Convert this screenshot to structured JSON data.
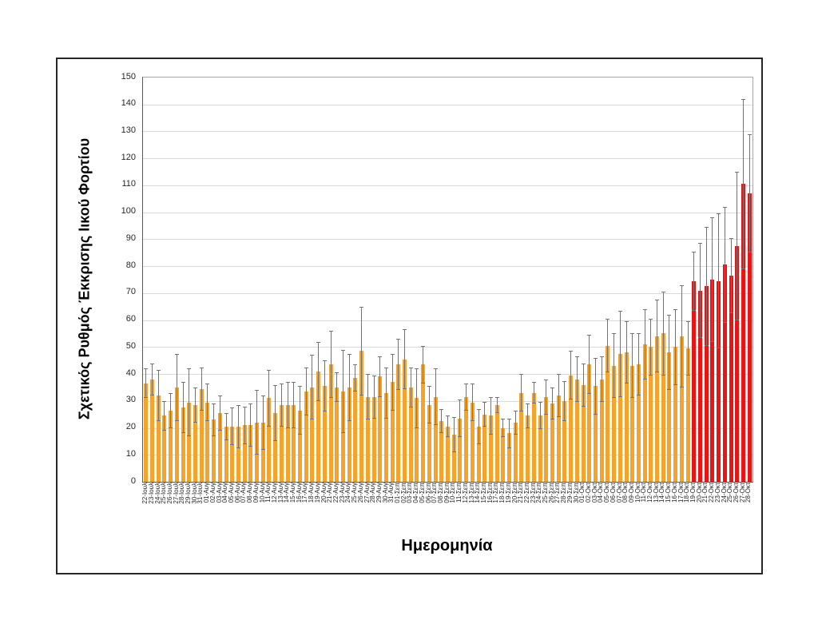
{
  "chart_data": {
    "type": "bar",
    "title": "",
    "ylabel": "Σχετικός Ρυθμός Έκκρισης Ιικού Φορτίου",
    "xlabel": "Ημερομηνία",
    "ylim": [
      0,
      150
    ],
    "y_ticks": [
      0,
      10,
      20,
      30,
      40,
      50,
      60,
      70,
      80,
      90,
      100,
      110,
      120,
      130,
      140,
      150
    ],
    "grid": true,
    "legend_position": "none",
    "error_bar_style": "symmetric-with-caps",
    "highlight_start_category": "19-Οκτ",
    "colors": {
      "bar_default": "#F5A32B",
      "bar_highlight": "#E91414",
      "error_bar": "#737373",
      "gridline": "#D9D9D9",
      "axis": "#595959"
    },
    "categories": [
      "22-Ιουλ",
      "23-Ιουλ",
      "24-Ιουλ",
      "25-Ιουλ",
      "26-Ιουλ",
      "27-Ιουλ",
      "28-Ιουλ",
      "29-Ιουλ",
      "30-Ιουλ",
      "31-Ιουλ",
      "01-Αυγ",
      "02-Αυγ",
      "03-Αυγ",
      "04-Αυγ",
      "05-Αυγ",
      "06-Αυγ",
      "07-Αυγ",
      "08-Αυγ",
      "09-Αυγ",
      "10-Αυγ",
      "11-Αυγ",
      "12-Αυγ",
      "13-Αυγ",
      "14-Αυγ",
      "15-Αυγ",
      "16-Αυγ",
      "17-Αυγ",
      "18-Αυγ",
      "19-Αυγ",
      "20-Αυγ",
      "21-Αυγ",
      "22-Αυγ",
      "23-Αυγ",
      "24-Αυγ",
      "25-Αυγ",
      "26-Αυγ",
      "27-Αυγ",
      "28-Αυγ",
      "29-Αυγ",
      "30-Αυγ",
      "31-Αυγ",
      "01-Σεπ",
      "02-Σεπ",
      "03-Σεπ",
      "04-Σεπ",
      "05-Σεπ",
      "06-Σεπ",
      "07-Σεπ",
      "08-Σεπ",
      "09-Σεπ",
      "10-Σεπ",
      "11-Σεπ",
      "12-Σεπ",
      "13-Σεπ",
      "14-Σεπ",
      "15-Σεπ",
      "16-Σεπ",
      "17-Σεπ",
      "18-Σεπ",
      "19-Σεπ",
      "20-Σεπ",
      "21-Σεπ",
      "22-Σεπ",
      "23-Σεπ",
      "24-Σεπ",
      "25-Σεπ",
      "26-Σεπ",
      "27-Σεπ",
      "28-Σεπ",
      "29-Σεπ",
      "30-Σεπ",
      "01-Οκτ",
      "02-Οκτ",
      "03-Οκτ",
      "04-Οκτ",
      "05-Οκτ",
      "06-Οκτ",
      "07-Οκτ",
      "08-Οκτ",
      "09-Οκτ",
      "10-Οκτ",
      "11-Οκτ",
      "12-Οκτ",
      "13-Οκτ",
      "14-Οκτ",
      "15-Οκτ",
      "16-Οκτ",
      "17-Οκτ",
      "18-Οκτ",
      "19-Οκτ",
      "20-Οκτ",
      "21-Οκτ",
      "22-Οκτ",
      "23-Οκτ",
      "24-Οκτ",
      "25-Οκτ",
      "26-Οκτ",
      "27-Οκτ",
      "28-Οκτ"
    ],
    "values": [
      36.5,
      38,
      32,
      24.5,
      26.5,
      35,
      27.5,
      29.5,
      28.5,
      34.5,
      29.5,
      23,
      25.5,
      20.5,
      20.5,
      20.5,
      21,
      21,
      22,
      22,
      31,
      25.5,
      28.5,
      28.5,
      28.5,
      26.5,
      33.5,
      35,
      41,
      35.5,
      43.5,
      35,
      33.5,
      35,
      38.5,
      48.5,
      31.5,
      31.5,
      39,
      33,
      37,
      43.5,
      45.5,
      35,
      31,
      43.5,
      28.5,
      31.5,
      22.5,
      20.5,
      17.5,
      23.5,
      31.5,
      29.5,
      20.5,
      25,
      24.5,
      28.5,
      20,
      18,
      22,
      33,
      24.5,
      33,
      24.5,
      31.5,
      29,
      32,
      30,
      39.5,
      38,
      36,
      43.5,
      35.5,
      38,
      50.5,
      43,
      47.5,
      48,
      43,
      43.5,
      51,
      50,
      54,
      55,
      48,
      50,
      54,
      49.5,
      74.5,
      71,
      72.5,
      75,
      74.5,
      80.5,
      76.5,
      87.5,
      110.5,
      107
    ],
    "error_margins": [
      5.5,
      6,
      9.5,
      5.5,
      6.5,
      12.5,
      9.5,
      12.5,
      6.5,
      8,
      7,
      6,
      6.5,
      5,
      7,
      8,
      7,
      8,
      12,
      10,
      10.5,
      10.5,
      8,
      8.5,
      8.5,
      9,
      9,
      12,
      11,
      9.5,
      12.5,
      5.5,
      15.5,
      12.5,
      5,
      16.5,
      8.5,
      8,
      7.5,
      9.5,
      10.5,
      9.5,
      11,
      7.5,
      11,
      7,
      7,
      10.5,
      4.5,
      4,
      6.5,
      7,
      5,
      7,
      6.5,
      4.5,
      7,
      3,
      3.5,
      5.5,
      4.5,
      7,
      4.5,
      4,
      5,
      6.5,
      6,
      8,
      7.5,
      9,
      8.5,
      8,
      11,
      10.5,
      8.5,
      10,
      12,
      16,
      11.5,
      12,
      11.5,
      13,
      10.5,
      13.5,
      15.5,
      14,
      14,
      19,
      10,
      11,
      17.5,
      22,
      23,
      25,
      21.5,
      14,
      27.5,
      31.5,
      22
    ]
  }
}
